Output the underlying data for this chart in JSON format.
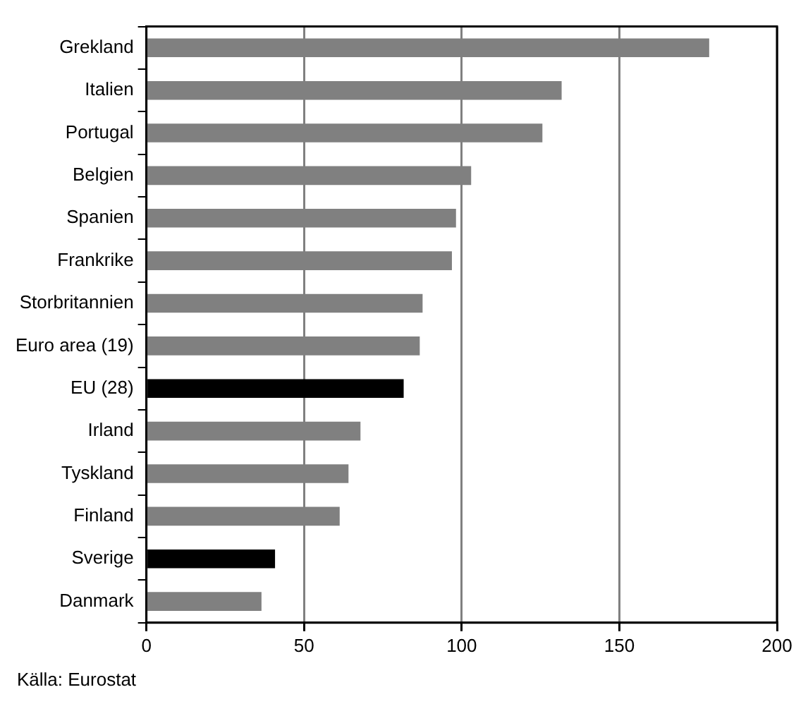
{
  "chart_data": {
    "type": "bar",
    "orientation": "horizontal",
    "categories": [
      "Grekland",
      "Italien",
      "Portugal",
      "Belgien",
      "Spanien",
      "Frankrike",
      "Storbritannien",
      "Euro area (19)",
      "EU (28)",
      "Irland",
      "Tyskland",
      "Finland",
      "Sverige",
      "Danmark"
    ],
    "values": [
      178.5,
      131.7,
      125.6,
      103,
      98.2,
      96.9,
      87.6,
      86.7,
      81.6,
      67.9,
      64.1,
      61.3,
      40.8,
      36.5
    ],
    "colors": [
      "#808080",
      "#808080",
      "#808080",
      "#808080",
      "#808080",
      "#808080",
      "#808080",
      "#808080",
      "#000000",
      "#808080",
      "#808080",
      "#808080",
      "#000000",
      "#808080"
    ],
    "xlim": [
      0,
      200
    ],
    "xticks": [
      0,
      50,
      100,
      150,
      200
    ],
    "grid": "x",
    "legend": false,
    "annotations": [
      "Källa: Eurostat"
    ]
  }
}
